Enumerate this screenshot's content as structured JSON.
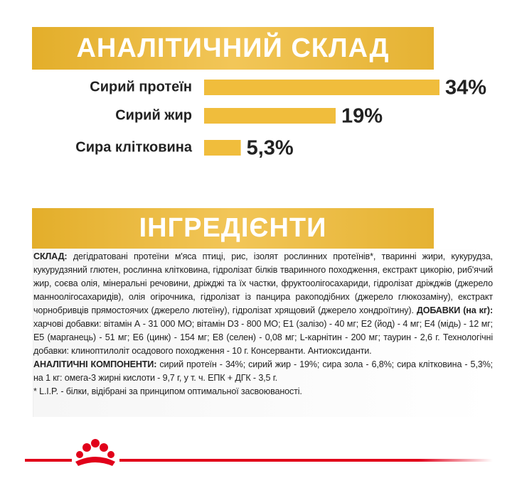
{
  "chart_data": {
    "type": "bar",
    "title": "АНАЛІТИЧНИЙ СКЛАД",
    "categories": [
      "Сирий протеїн",
      "Сирий жир",
      "Сира клітковина"
    ],
    "values": [
      34,
      19,
      5.3
    ],
    "value_labels": [
      "34%",
      "19%",
      "5,3%"
    ],
    "color": "#f0bd3c"
  },
  "ingredients": {
    "title": "ІНГРЕДІЄНТИ",
    "composition_label": "СКЛАД:",
    "composition": "дегідратовані протеїни м'яса птиці, рис, ізолят рослинних протеїнів*, тваринні жири, кукурудза, кукурудзяний глютен, рослинна клітковина, гідролізат білків тваринного походження, екстракт цикорію, риб'ячий жир, соєва олія, мінеральні речовини, дріжджі та їх частки, фруктоолігосахариди, гідролізат дріжджів (джерело манноолігосахаридів), олія огірочника, гідролізат із панцира ракоподібних (джерело глюкозаміну), екстракт чорнобривців прямостоячих (джерело лютеїну), гідролізат хрящовий (джерело хондроїтину).",
    "additives_label": "ДОБАВКИ (на кг):",
    "additives": "харчові добавки: вітамін А - 31 000 МО; вітамін D3 - 800 МО; Е1 (залізо) - 40 мг; Е2 (йод) - 4 мг; Е4 (мідь) - 12 мг; Е5 (марганець) - 51 мг; Е6 (цинк) - 154 мг; Е8 (селен) - 0,08 мг; L-карнітин - 200 мг; таурин - 2,6 г. Технологічні добавки: клиноптилоліт осадового походження - 10 г. Консерванти. Антиоксиданти.",
    "analytical_label": "АНАЛІТИЧНІ КОМПОНЕНТИ:",
    "analytical": "сирий протеїн - 34%; сирий жир - 19%; сира зола - 6,8%; сира клітковина - 5,3%; на 1 кг: омега-3 жирні кислоти - 9,7 г, у т. ч. ЕПК + ДГК - 3,5 г.",
    "footnote": "* L.I.P. - білки, відібрані за принципом оптимальної засвоюваності."
  }
}
